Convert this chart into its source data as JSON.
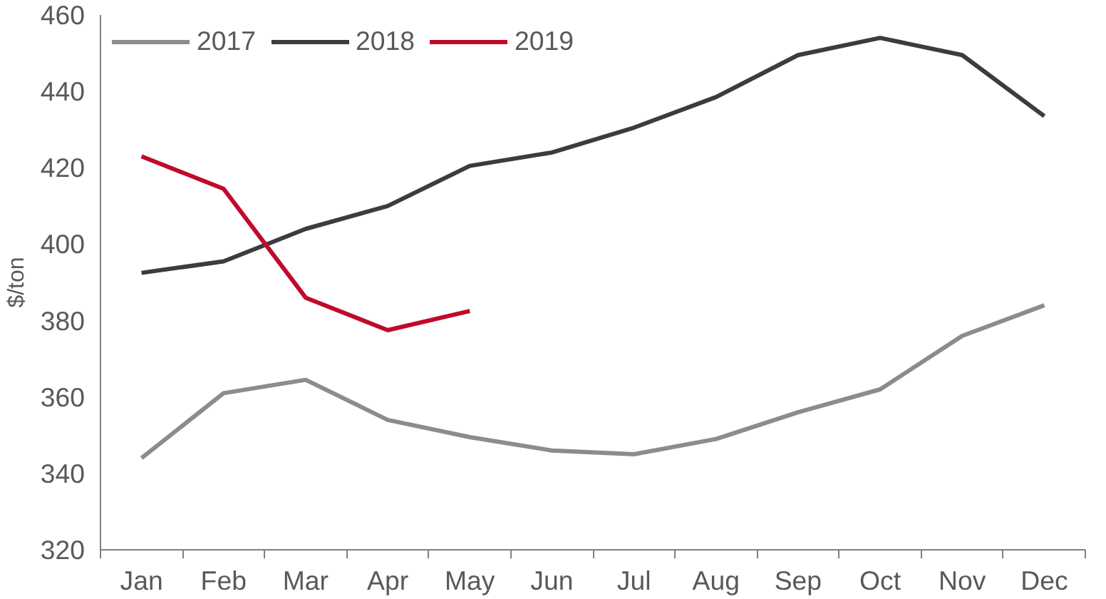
{
  "chart_data": {
    "type": "line",
    "ylabel": "$/ton",
    "categories": [
      "Jan",
      "Feb",
      "Mar",
      "Apr",
      "May",
      "Jun",
      "Jul",
      "Aug",
      "Sep",
      "Oct",
      "Nov",
      "Dec"
    ],
    "series": [
      {
        "name": "2017",
        "color": "#8c8c8c",
        "values": [
          344,
          361,
          364.5,
          354,
          349.5,
          346,
          345,
          349,
          356,
          362,
          376,
          384
        ]
      },
      {
        "name": "2018",
        "color": "#3c3c3f",
        "values": [
          392.5,
          395.5,
          404,
          410,
          420.5,
          424,
          430.5,
          438.5,
          449.5,
          454,
          449.5,
          433.5
        ]
      },
      {
        "name": "2019",
        "color": "#c00a2b",
        "values": [
          423,
          414.5,
          386,
          377.5,
          382.5,
          null,
          null,
          null,
          null,
          null,
          null,
          null
        ]
      }
    ],
    "ylim": [
      320,
      460
    ],
    "yticks": [
      320,
      340,
      360,
      380,
      400,
      420,
      440,
      460
    ],
    "grid": false,
    "legend": "top left",
    "marker": "none",
    "line_style": "solid"
  }
}
